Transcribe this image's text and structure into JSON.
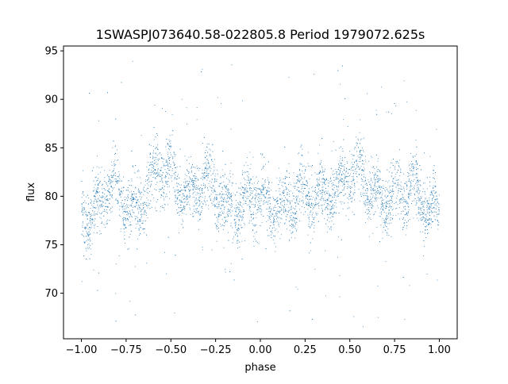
{
  "chart_data": {
    "type": "scatter",
    "title": "1SWASPJ073640.58-022805.8 Period 1979072.625s",
    "xlabel": "phase",
    "ylabel": "flux",
    "xlim": [
      -1.1,
      1.1
    ],
    "ylim": [
      65.3,
      95.5
    ],
    "x_ticks": [
      -1.0,
      -0.75,
      -0.5,
      -0.25,
      0.0,
      0.25,
      0.5,
      0.75,
      1.0
    ],
    "x_tick_labels": [
      "−1.00",
      "−0.75",
      "−0.50",
      "−0.25",
      "0.00",
      "0.25",
      "0.50",
      "0.75",
      "1.00"
    ],
    "y_ticks": [
      70,
      75,
      80,
      85,
      90,
      95
    ],
    "y_tick_labels": [
      "70",
      "75",
      "80",
      "85",
      "90",
      "95"
    ],
    "grid": false,
    "legend": "none",
    "marker_color": "#1f77b4",
    "phase_range": [
      -1.0,
      1.0
    ],
    "baseline_flux": 80,
    "typical_flux_range": [
      75,
      86
    ],
    "outlier_flux_range": [
      66.5,
      94
    ],
    "profile": [
      {
        "x": -1.0,
        "y": 79.5
      },
      {
        "x": -0.95,
        "y": 78.5
      },
      {
        "x": -0.9,
        "y": 79.5
      },
      {
        "x": -0.8,
        "y": 80.0
      },
      {
        "x": -0.72,
        "y": 79.0
      },
      {
        "x": -0.6,
        "y": 81.5
      },
      {
        "x": -0.5,
        "y": 82.0
      },
      {
        "x": -0.4,
        "y": 81.0
      },
      {
        "x": -0.3,
        "y": 80.5
      },
      {
        "x": -0.2,
        "y": 79.5
      },
      {
        "x": -0.1,
        "y": 80.0
      },
      {
        "x": 0.0,
        "y": 79.0
      },
      {
        "x": 0.05,
        "y": 78.5
      },
      {
        "x": 0.1,
        "y": 79.5
      },
      {
        "x": 0.2,
        "y": 80.0
      },
      {
        "x": 0.28,
        "y": 79.0
      },
      {
        "x": 0.4,
        "y": 81.5
      },
      {
        "x": 0.5,
        "y": 82.0
      },
      {
        "x": 0.6,
        "y": 81.0
      },
      {
        "x": 0.7,
        "y": 80.5
      },
      {
        "x": 0.8,
        "y": 79.5
      },
      {
        "x": 0.9,
        "y": 80.0
      },
      {
        "x": 1.0,
        "y": 79.0
      }
    ]
  }
}
